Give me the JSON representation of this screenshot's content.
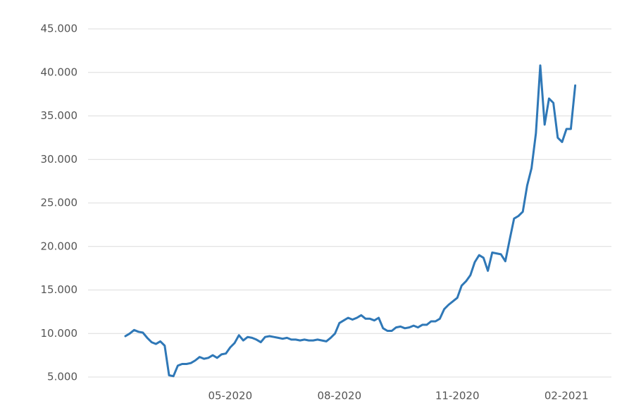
{
  "chart_data": {
    "type": "line",
    "categories": [
      null,
      null,
      null,
      null,
      null,
      null,
      null,
      null,
      null,
      null,
      null,
      null,
      null,
      null,
      null,
      null,
      null,
      null,
      null,
      null,
      null,
      null,
      null,
      null,
      "05-2020",
      null,
      null,
      null,
      null,
      null,
      null,
      null,
      null,
      null,
      null,
      null,
      null,
      null,
      null,
      null,
      null,
      null,
      null,
      null,
      null,
      null,
      null,
      null,
      null,
      "08-2020",
      null,
      null,
      null,
      null,
      null,
      null,
      null,
      null,
      null,
      null,
      null,
      null,
      null,
      null,
      null,
      null,
      null,
      null,
      null,
      null,
      null,
      null,
      null,
      null,
      null,
      null,
      "11-2020",
      null,
      null,
      null,
      null,
      null,
      null,
      null,
      null,
      null,
      null,
      null,
      null,
      null,
      null,
      null,
      null,
      null,
      null,
      null,
      null,
      null,
      null,
      null,
      null,
      "02-2021",
      null,
      null
    ],
    "values": [
      9700,
      10000,
      10400,
      10200,
      10100,
      9500,
      9000,
      8800,
      9100,
      8600,
      5200,
      5100,
      6300,
      6500,
      6500,
      6600,
      6900,
      7300,
      7100,
      7200,
      7500,
      7200,
      7600,
      7700,
      8400,
      8900,
      9800,
      9200,
      9600,
      9500,
      9300,
      9000,
      9600,
      9700,
      9600,
      9500,
      9400,
      9500,
      9300,
      9300,
      9200,
      9300,
      9200,
      9200,
      9300,
      9200,
      9100,
      9500,
      10000,
      11200,
      11500,
      11800,
      11600,
      11800,
      12100,
      11700,
      11700,
      11500,
      11800,
      10600,
      10300,
      10300,
      10700,
      10800,
      10600,
      10700,
      10900,
      10700,
      11000,
      11000,
      11400,
      11400,
      11700,
      12800,
      13300,
      13700,
      14100,
      15500,
      16000,
      16700,
      18200,
      19000,
      18700,
      17200,
      19300,
      19200,
      19100,
      18300,
      20800,
      23200,
      23500,
      24000,
      27000,
      29000,
      33000,
      40800,
      34000,
      37000,
      36500,
      32500,
      32000,
      33500,
      33500,
      38500
    ],
    "color": "#2f78b7",
    "ylim": [
      5000,
      45000
    ],
    "yticks": [
      {
        "value": 5000,
        "label": "5.000"
      },
      {
        "value": 10000,
        "label": "10.000"
      },
      {
        "value": 15000,
        "label": "15.000"
      },
      {
        "value": 20000,
        "label": "20.000"
      },
      {
        "value": 25000,
        "label": "25.000"
      },
      {
        "value": 30000,
        "label": "30.000"
      },
      {
        "value": 35000,
        "label": "35.000"
      },
      {
        "value": 40000,
        "label": "40.000"
      },
      {
        "value": 45000,
        "label": "45.000"
      }
    ],
    "grid": true
  }
}
